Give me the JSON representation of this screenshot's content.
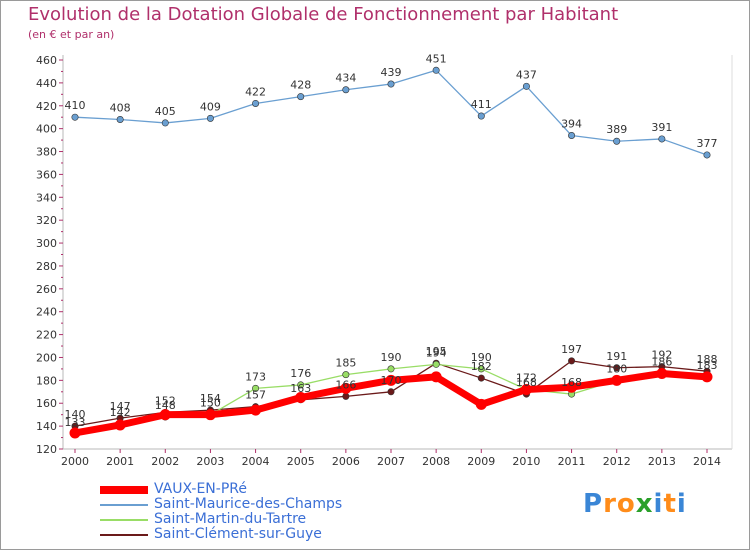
{
  "chart_data": {
    "type": "line",
    "title": "Evolution de la Dotation Globale de Fonctionnement par Habitant",
    "subtitle": "(en € et par an)",
    "x": [
      "2000",
      "2001",
      "2002",
      "2003",
      "2004",
      "2005",
      "2006",
      "2007",
      "2008",
      "2009",
      "2010",
      "2011",
      "2012",
      "2013",
      "2014"
    ],
    "ylim": [
      120,
      460
    ],
    "yticks": [
      120,
      140,
      160,
      180,
      200,
      220,
      240,
      260,
      280,
      300,
      320,
      340,
      360,
      380,
      400,
      420,
      440,
      460
    ],
    "grid": false,
    "legend_position": "bottom-left",
    "series": [
      {
        "name": "VAUX-EN-PRé",
        "color": "#ff0000",
        "values": [
          134,
          141,
          150,
          150,
          154,
          165,
          173,
          180,
          183,
          159,
          172,
          174,
          180,
          186,
          183
        ],
        "labels_shown": false
      },
      {
        "name": "Saint-Maurice-des-Champs",
        "color": "#6a9fd1",
        "values": [
          410,
          408,
          405,
          409,
          422,
          428,
          434,
          439,
          451,
          411,
          437,
          394,
          389,
          391,
          377
        ],
        "labels_shown": true
      },
      {
        "name": "Saint-Martin-du-Tartre",
        "color": "#99dd66",
        "values": [
          133,
          142,
          148,
          150,
          173,
          176,
          185,
          190,
          194,
          190,
          172,
          168,
          180,
          186,
          183
        ],
        "labels_shown": true
      },
      {
        "name": "Saint-Clément-sur-Guye",
        "color": "#6b1a1a",
        "values": [
          140,
          147,
          152,
          154,
          157,
          163,
          166,
          170,
          195,
          182,
          168,
          197,
          191,
          192,
          188
        ],
        "labels_shown": true
      }
    ]
  },
  "logo": {
    "letters": [
      "P",
      "r",
      "o",
      "x",
      "i",
      "t",
      "i"
    ],
    "colors": [
      "#3a86d6",
      "#ff8c1a",
      "#ff8c1a",
      "#2aa02a",
      "#3a86d6",
      "#ff8c1a",
      "#3a86d6"
    ]
  }
}
